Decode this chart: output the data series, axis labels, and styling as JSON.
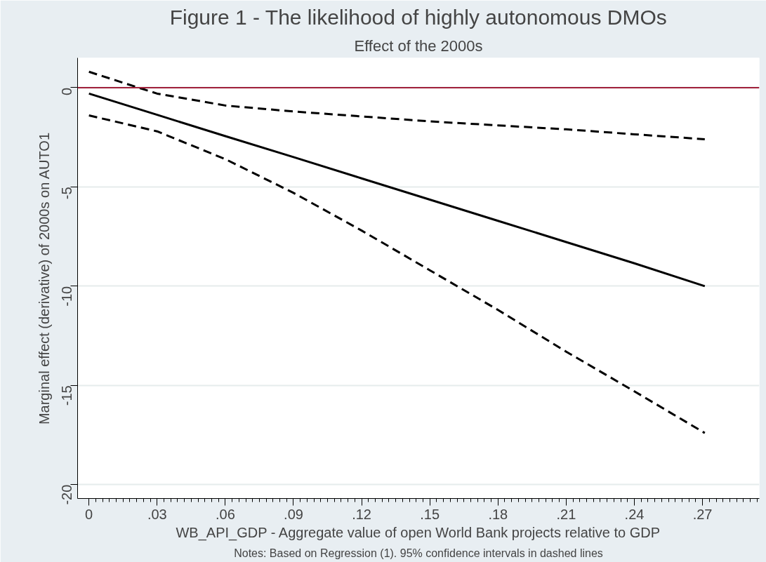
{
  "chart_data": {
    "type": "line",
    "title": "Figure 1 - The likelihood of highly autonomous DMOs",
    "subtitle": "Effect of the 2000s",
    "xlabel": "WB_API_GDP - Aggregate value of open World Bank projects relative to GDP",
    "ylabel": "Marginal effect (derivative) of 2000s on AUTO1",
    "annotations": [
      "Notes: Based on Regression (1). 95% confidence intervals in dashed lines"
    ],
    "x": [
      0,
      0.03,
      0.06,
      0.09,
      0.12,
      0.15,
      0.18,
      0.21,
      0.24,
      0.271
    ],
    "series": [
      {
        "color": "#000000",
        "line_style": "solid",
        "values": [
          -0.3,
          -1.37,
          -2.44,
          -3.5,
          -4.57,
          -5.64,
          -6.71,
          -7.78,
          -8.85,
          -10.0
        ]
      },
      {
        "color": "#000000",
        "line_style": "dashed",
        "values": [
          0.8,
          -0.3,
          -0.9,
          -1.2,
          -1.45,
          -1.7,
          -1.9,
          -2.1,
          -2.35,
          -2.6
        ]
      },
      {
        "color": "#000000",
        "line_style": "dashed",
        "values": [
          -1.4,
          -2.2,
          -3.6,
          -5.3,
          -7.2,
          -9.2,
          -11.2,
          -13.3,
          -15.3,
          -17.4
        ]
      }
    ],
    "xlim": [
      -0.005,
      0.295
    ],
    "ylim": [
      -20.7,
      1.5
    ],
    "xticks": [
      0,
      {
        "value": 0.03,
        "label": ".03"
      },
      {
        "value": 0.06,
        "label": ".06"
      },
      {
        "value": 0.09,
        "label": ".09"
      },
      {
        "value": 0.12,
        "label": ".12"
      },
      {
        "value": 0.15,
        "label": ".15"
      },
      {
        "value": 0.18,
        "label": ".18"
      },
      {
        "value": 0.21,
        "label": ".21"
      },
      {
        "value": 0.24,
        "label": ".24"
      },
      {
        "value": 0.27,
        "label": ".27"
      }
    ],
    "yticks": [
      0,
      -5,
      -10,
      -15,
      -20
    ],
    "ref_lines": [
      {
        "axis": "y",
        "value": 0,
        "color": "#a0203a"
      }
    ],
    "grid": "y",
    "marker": "none"
  }
}
